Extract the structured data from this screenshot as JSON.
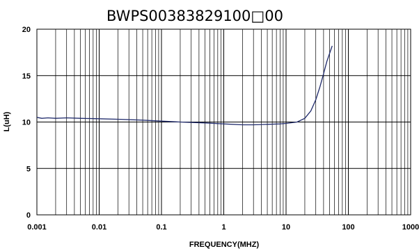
{
  "chart_data": {
    "type": "line",
    "title": "BWPS00383829100□00",
    "xlabel": "FREQUENCY(MHZ)",
    "ylabel": "L(uH)",
    "x_scale": "log",
    "xlim": [
      0.001,
      1000
    ],
    "ylim": [
      0,
      20
    ],
    "x_tick_labels": [
      "0.001",
      "0.01",
      "0.1",
      "1",
      "10",
      "100",
      "1000"
    ],
    "y_tick_labels": [
      "0",
      "5",
      "10",
      "15",
      "20"
    ],
    "grid": true,
    "line_color": "#1f2a6b",
    "series": [
      {
        "x": [
          0.001,
          0.0012,
          0.0015,
          0.002,
          0.003,
          0.005,
          0.01,
          0.02,
          0.05,
          0.1,
          0.2,
          0.5,
          1,
          2,
          3,
          5,
          8,
          10,
          15,
          20,
          25,
          30,
          35,
          40,
          45,
          50,
          55
        ],
        "y": [
          10.5,
          10.4,
          10.45,
          10.4,
          10.45,
          10.4,
          10.35,
          10.3,
          10.2,
          10.1,
          10.0,
          9.9,
          9.8,
          9.7,
          9.7,
          9.75,
          9.8,
          9.85,
          10.0,
          10.4,
          11.2,
          12.4,
          13.8,
          15.2,
          16.5,
          17.4,
          18.2
        ]
      }
    ]
  }
}
